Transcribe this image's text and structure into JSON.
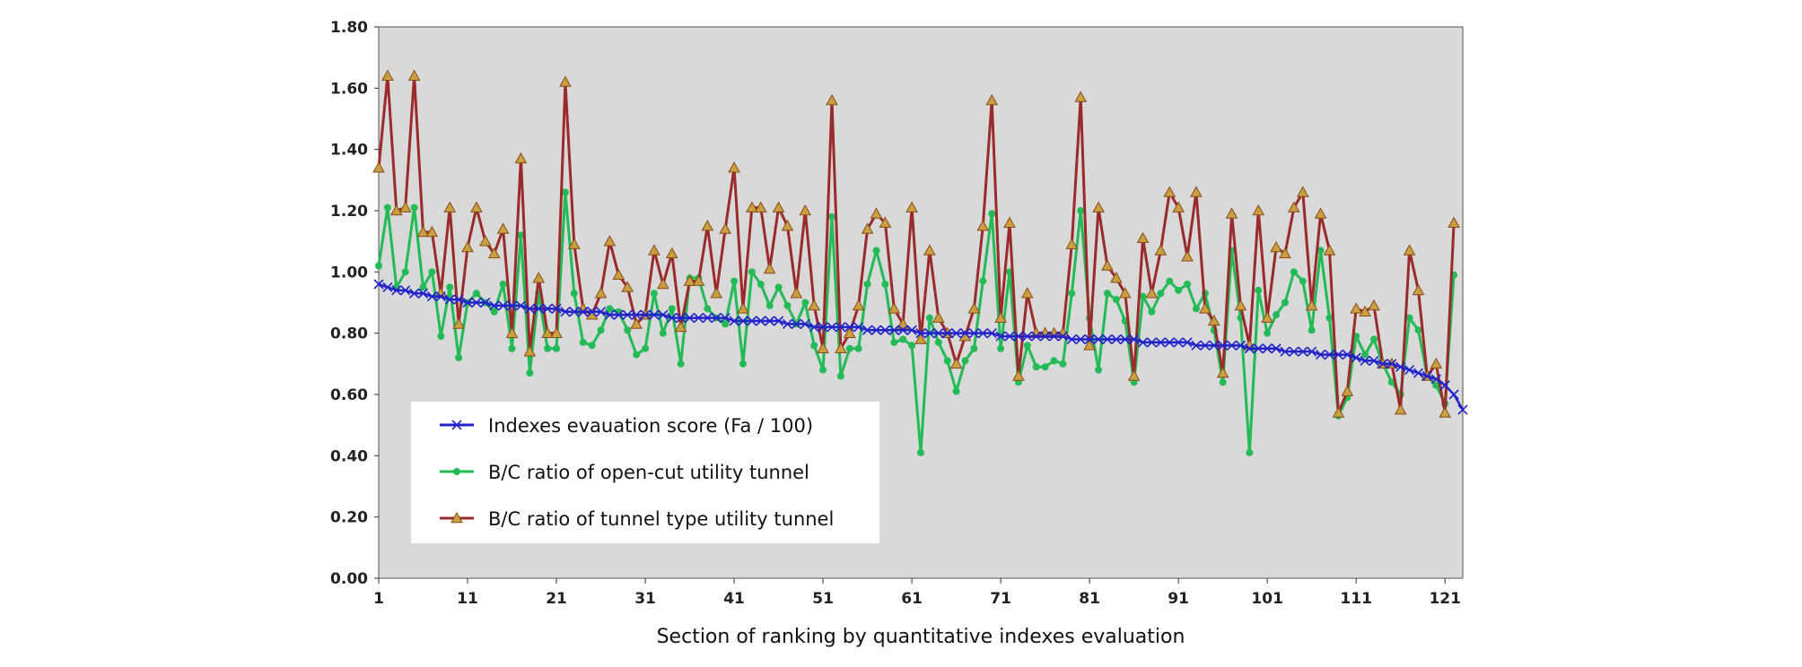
{
  "chart_data": {
    "type": "line",
    "title": "",
    "xlabel": "Section of ranking by quantitative indexes evaluation",
    "ylabel": "",
    "ylim": [
      0,
      1.8
    ],
    "xlim": [
      1,
      123
    ],
    "yticks": [
      "0.00",
      "0.20",
      "0.40",
      "0.60",
      "0.80",
      "1.00",
      "1.20",
      "1.40",
      "1.60",
      "1.80"
    ],
    "xticks": [
      1,
      11,
      21,
      31,
      41,
      51,
      61,
      71,
      81,
      91,
      101,
      111,
      121
    ],
    "grid": false,
    "legend_position": "bottom-left",
    "plot_background": "#d9d9d9",
    "series": [
      {
        "name": "Indexes evauation score (Fa / 100)",
        "color": "#2222cc",
        "marker": "x",
        "values": [
          0.96,
          0.95,
          0.94,
          0.94,
          0.93,
          0.93,
          0.92,
          0.92,
          0.91,
          0.91,
          0.9,
          0.9,
          0.9,
          0.89,
          0.89,
          0.89,
          0.89,
          0.88,
          0.88,
          0.88,
          0.88,
          0.87,
          0.87,
          0.87,
          0.87,
          0.87,
          0.86,
          0.86,
          0.86,
          0.86,
          0.86,
          0.86,
          0.86,
          0.85,
          0.85,
          0.85,
          0.85,
          0.85,
          0.85,
          0.85,
          0.84,
          0.84,
          0.84,
          0.84,
          0.84,
          0.84,
          0.83,
          0.83,
          0.83,
          0.82,
          0.82,
          0.82,
          0.82,
          0.82,
          0.82,
          0.81,
          0.81,
          0.81,
          0.81,
          0.81,
          0.81,
          0.8,
          0.8,
          0.8,
          0.8,
          0.8,
          0.8,
          0.8,
          0.8,
          0.8,
          0.79,
          0.79,
          0.79,
          0.79,
          0.79,
          0.79,
          0.79,
          0.79,
          0.78,
          0.78,
          0.78,
          0.78,
          0.78,
          0.78,
          0.78,
          0.78,
          0.77,
          0.77,
          0.77,
          0.77,
          0.77,
          0.77,
          0.76,
          0.76,
          0.76,
          0.76,
          0.76,
          0.76,
          0.75,
          0.75,
          0.75,
          0.75,
          0.74,
          0.74,
          0.74,
          0.74,
          0.73,
          0.73,
          0.73,
          0.73,
          0.72,
          0.71,
          0.71,
          0.7,
          0.7,
          0.69,
          0.68,
          0.67,
          0.66,
          0.65,
          0.63,
          0.6,
          0.55
        ]
      },
      {
        "name": "B/C ratio of open-cut utility tunnel",
        "color": "#22bb55",
        "marker": "circle",
        "values": [
          1.02,
          1.21,
          0.95,
          1.0,
          1.21,
          0.95,
          1.0,
          0.79,
          0.95,
          0.72,
          0.9,
          0.93,
          0.9,
          0.87,
          0.96,
          0.75,
          1.12,
          0.67,
          0.93,
          0.75,
          0.75,
          1.26,
          0.93,
          0.77,
          0.76,
          0.81,
          0.88,
          0.87,
          0.81,
          0.73,
          0.75,
          0.93,
          0.8,
          0.88,
          0.7,
          0.98,
          0.98,
          0.88,
          0.85,
          0.83,
          0.97,
          0.7,
          1.0,
          0.96,
          0.89,
          0.95,
          0.89,
          0.83,
          0.9,
          0.76,
          0.68,
          1.18,
          0.66,
          0.75,
          0.75,
          0.96,
          1.07,
          0.96,
          0.77,
          0.78,
          0.76,
          0.41,
          0.85,
          0.77,
          0.71,
          0.61,
          0.71,
          0.75,
          0.97,
          1.19,
          0.75,
          1.0,
          0.64,
          0.76,
          0.69,
          0.69,
          0.71,
          0.7,
          0.93,
          1.2,
          0.85,
          0.68,
          0.93,
          0.91,
          0.84,
          0.64,
          0.92,
          0.87,
          0.93,
          0.97,
          0.94,
          0.96,
          0.88,
          0.93,
          0.81,
          0.64,
          1.07,
          0.85,
          0.41,
          0.94,
          0.8,
          0.86,
          0.9,
          1.0,
          0.97,
          0.81,
          1.07,
          0.85,
          0.53,
          0.59,
          0.79,
          0.73,
          0.78,
          0.7,
          0.64,
          0.6,
          0.85,
          0.81,
          0.66,
          0.63,
          0.57,
          0.99
        ]
      },
      {
        "name": "B/C ratio of tunnel type utility tunnel",
        "color": "#9b2a2a",
        "marker": "triangle",
        "values": [
          1.34,
          1.64,
          1.2,
          1.21,
          1.64,
          1.13,
          1.13,
          0.93,
          1.21,
          0.83,
          1.08,
          1.21,
          1.1,
          1.06,
          1.14,
          0.8,
          1.37,
          0.74,
          0.98,
          0.8,
          0.8,
          1.62,
          1.09,
          0.88,
          0.86,
          0.93,
          1.1,
          0.99,
          0.95,
          0.83,
          0.86,
          1.07,
          0.96,
          1.06,
          0.82,
          0.97,
          0.97,
          1.15,
          0.93,
          1.14,
          1.34,
          0.88,
          1.21,
          1.21,
          1.01,
          1.21,
          1.15,
          0.93,
          1.2,
          0.89,
          0.75,
          1.56,
          0.75,
          0.8,
          0.89,
          1.14,
          1.19,
          1.16,
          0.88,
          0.83,
          1.21,
          0.78,
          1.07,
          0.85,
          0.8,
          0.7,
          0.79,
          0.88,
          1.15,
          1.56,
          0.85,
          1.16,
          0.66,
          0.93,
          0.8,
          0.8,
          0.8,
          0.8,
          1.09,
          1.57,
          0.76,
          1.21,
          1.02,
          0.98,
          0.93,
          0.66,
          1.11,
          0.93,
          1.07,
          1.26,
          1.21,
          1.05,
          1.26,
          0.88,
          0.84,
          0.67,
          1.19,
          0.89,
          0.76,
          1.2,
          0.85,
          1.08,
          1.06,
          1.21,
          1.26,
          0.89,
          1.19,
          1.07,
          0.54,
          0.61,
          0.88,
          0.87,
          0.89,
          0.7,
          0.7,
          0.55,
          1.07,
          0.94,
          0.66,
          0.7,
          0.54,
          1.16
        ]
      }
    ]
  }
}
